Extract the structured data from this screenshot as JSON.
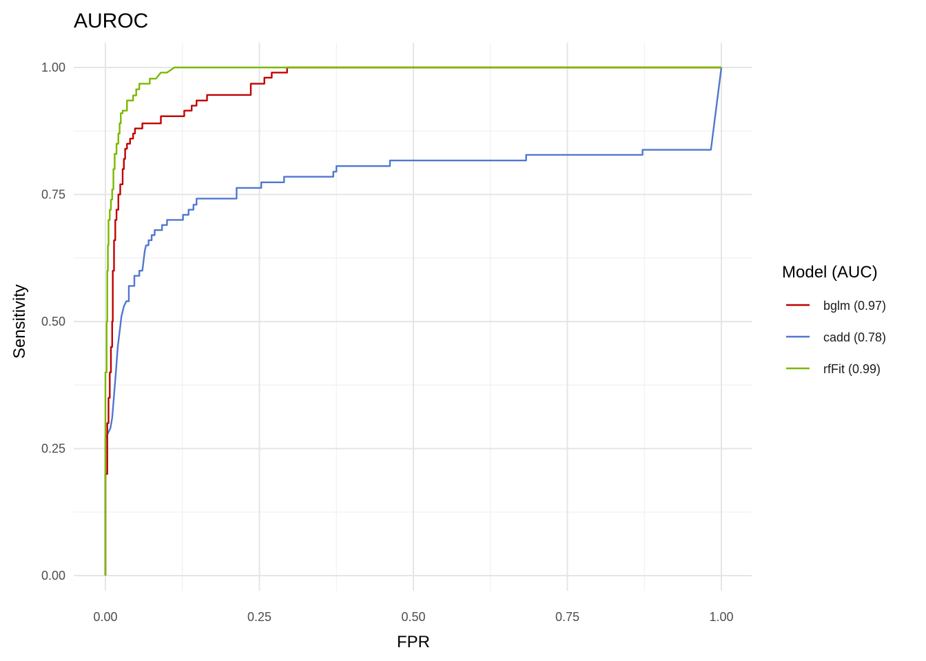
{
  "chart_data": {
    "type": "line",
    "title": "AUROC",
    "xlabel": "FPR",
    "ylabel": "Sensitivity",
    "xlim": [
      0,
      1
    ],
    "ylim": [
      0,
      1
    ],
    "x_ticks": [
      0,
      0.25,
      0.5,
      0.75,
      1
    ],
    "y_ticks": [
      0,
      0.25,
      0.5,
      0.75,
      1
    ],
    "x_tick_labels": [
      "0.00",
      "0.25",
      "0.50",
      "0.75",
      "1.00"
    ],
    "y_tick_labels": [
      "0.00",
      "0.25",
      "0.50",
      "0.75",
      "1.00"
    ],
    "grid": true,
    "legend": {
      "title": "Model (AUC)",
      "position": "right"
    },
    "series": [
      {
        "name": "bglm (0.97)",
        "color": "#c00000",
        "points": [
          [
            0,
            0
          ],
          [
            0,
            0.2
          ],
          [
            0.003,
            0.2
          ],
          [
            0.003,
            0.3
          ],
          [
            0.005,
            0.3
          ],
          [
            0.005,
            0.35
          ],
          [
            0.007,
            0.35
          ],
          [
            0.007,
            0.4
          ],
          [
            0.009,
            0.4
          ],
          [
            0.009,
            0.45
          ],
          [
            0.011,
            0.45
          ],
          [
            0.011,
            0.5
          ],
          [
            0.012,
            0.5
          ],
          [
            0.012,
            0.6
          ],
          [
            0.014,
            0.6
          ],
          [
            0.014,
            0.66
          ],
          [
            0.016,
            0.66
          ],
          [
            0.016,
            0.7
          ],
          [
            0.018,
            0.7
          ],
          [
            0.018,
            0.72
          ],
          [
            0.021,
            0.72
          ],
          [
            0.021,
            0.75
          ],
          [
            0.024,
            0.75
          ],
          [
            0.024,
            0.77
          ],
          [
            0.028,
            0.77
          ],
          [
            0.028,
            0.8
          ],
          [
            0.03,
            0.8
          ],
          [
            0.03,
            0.82
          ],
          [
            0.032,
            0.82
          ],
          [
            0.032,
            0.84
          ],
          [
            0.035,
            0.84
          ],
          [
            0.035,
            0.85
          ],
          [
            0.04,
            0.85
          ],
          [
            0.04,
            0.86
          ],
          [
            0.045,
            0.86
          ],
          [
            0.045,
            0.87
          ],
          [
            0.048,
            0.87
          ],
          [
            0.048,
            0.88
          ],
          [
            0.06,
            0.88
          ],
          [
            0.06,
            0.89
          ],
          [
            0.09,
            0.89
          ],
          [
            0.09,
            0.904
          ],
          [
            0.128,
            0.904
          ],
          [
            0.128,
            0.915
          ],
          [
            0.14,
            0.915
          ],
          [
            0.14,
            0.925
          ],
          [
            0.148,
            0.925
          ],
          [
            0.148,
            0.935
          ],
          [
            0.165,
            0.935
          ],
          [
            0.165,
            0.946
          ],
          [
            0.236,
            0.946
          ],
          [
            0.236,
            0.968
          ],
          [
            0.258,
            0.968
          ],
          [
            0.258,
            0.98
          ],
          [
            0.27,
            0.98
          ],
          [
            0.27,
            0.99
          ],
          [
            0.295,
            0.99
          ],
          [
            0.295,
            1.0
          ],
          [
            1.0,
            1.0
          ]
        ]
      },
      {
        "name": "cadd (0.78)",
        "color": "#4f77d0",
        "points": [
          [
            0,
            0
          ],
          [
            0,
            0.27
          ],
          [
            0.004,
            0.28
          ],
          [
            0.008,
            0.29
          ],
          [
            0.011,
            0.31
          ],
          [
            0.013,
            0.34
          ],
          [
            0.015,
            0.37
          ],
          [
            0.017,
            0.4
          ],
          [
            0.02,
            0.45
          ],
          [
            0.022,
            0.47
          ],
          [
            0.024,
            0.49
          ],
          [
            0.026,
            0.51
          ],
          [
            0.028,
            0.52
          ],
          [
            0.03,
            0.53
          ],
          [
            0.034,
            0.54
          ],
          [
            0.038,
            0.54
          ],
          [
            0.038,
            0.57
          ],
          [
            0.047,
            0.57
          ],
          [
            0.047,
            0.59
          ],
          [
            0.055,
            0.59
          ],
          [
            0.055,
            0.6
          ],
          [
            0.06,
            0.6
          ],
          [
            0.062,
            0.62
          ],
          [
            0.064,
            0.64
          ],
          [
            0.066,
            0.65
          ],
          [
            0.07,
            0.65
          ],
          [
            0.07,
            0.66
          ],
          [
            0.075,
            0.66
          ],
          [
            0.075,
            0.67
          ],
          [
            0.08,
            0.67
          ],
          [
            0.08,
            0.68
          ],
          [
            0.092,
            0.68
          ],
          [
            0.092,
            0.69
          ],
          [
            0.1,
            0.69
          ],
          [
            0.1,
            0.7
          ],
          [
            0.126,
            0.7
          ],
          [
            0.126,
            0.71
          ],
          [
            0.135,
            0.71
          ],
          [
            0.135,
            0.72
          ],
          [
            0.143,
            0.72
          ],
          [
            0.143,
            0.73
          ],
          [
            0.148,
            0.73
          ],
          [
            0.148,
            0.742
          ],
          [
            0.213,
            0.742
          ],
          [
            0.213,
            0.763
          ],
          [
            0.253,
            0.763
          ],
          [
            0.253,
            0.774
          ],
          [
            0.29,
            0.774
          ],
          [
            0.29,
            0.785
          ],
          [
            0.37,
            0.785
          ],
          [
            0.37,
            0.795
          ],
          [
            0.375,
            0.795
          ],
          [
            0.375,
            0.806
          ],
          [
            0.462,
            0.806
          ],
          [
            0.462,
            0.817
          ],
          [
            0.683,
            0.817
          ],
          [
            0.683,
            0.828
          ],
          [
            0.872,
            0.828
          ],
          [
            0.872,
            0.838
          ],
          [
            0.983,
            0.838
          ],
          [
            1.0,
            1.0
          ]
        ]
      },
      {
        "name": "rfFit (0.99)",
        "color": "#7ab800",
        "points": [
          [
            0,
            0
          ],
          [
            0,
            0.4
          ],
          [
            0.002,
            0.4
          ],
          [
            0.002,
            0.5
          ],
          [
            0.003,
            0.5
          ],
          [
            0.003,
            0.6
          ],
          [
            0.004,
            0.6
          ],
          [
            0.004,
            0.65
          ],
          [
            0.005,
            0.65
          ],
          [
            0.005,
            0.7
          ],
          [
            0.007,
            0.7
          ],
          [
            0.007,
            0.72
          ],
          [
            0.009,
            0.72
          ],
          [
            0.009,
            0.74
          ],
          [
            0.011,
            0.74
          ],
          [
            0.011,
            0.76
          ],
          [
            0.013,
            0.76
          ],
          [
            0.013,
            0.8
          ],
          [
            0.015,
            0.8
          ],
          [
            0.015,
            0.83
          ],
          [
            0.018,
            0.83
          ],
          [
            0.018,
            0.85
          ],
          [
            0.021,
            0.85
          ],
          [
            0.021,
            0.87
          ],
          [
            0.023,
            0.87
          ],
          [
            0.023,
            0.89
          ],
          [
            0.025,
            0.89
          ],
          [
            0.025,
            0.91
          ],
          [
            0.028,
            0.91
          ],
          [
            0.028,
            0.915
          ],
          [
            0.035,
            0.915
          ],
          [
            0.035,
            0.935
          ],
          [
            0.045,
            0.935
          ],
          [
            0.045,
            0.945
          ],
          [
            0.05,
            0.945
          ],
          [
            0.05,
            0.957
          ],
          [
            0.055,
            0.957
          ],
          [
            0.055,
            0.968
          ],
          [
            0.072,
            0.968
          ],
          [
            0.072,
            0.978
          ],
          [
            0.082,
            0.978
          ],
          [
            0.09,
            0.99
          ],
          [
            0.1,
            0.99
          ],
          [
            0.112,
            1.0
          ],
          [
            1.0,
            1.0
          ]
        ]
      }
    ]
  }
}
